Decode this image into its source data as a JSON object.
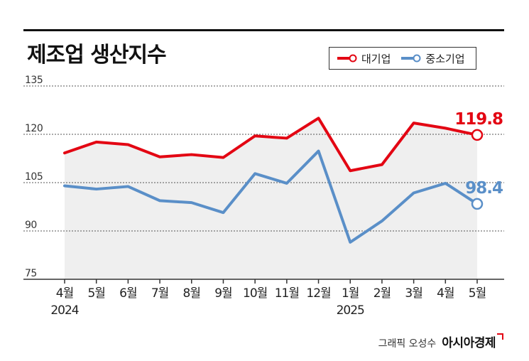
{
  "title": "제조업 생산지수",
  "credit": {
    "author": "그래픽 오성수",
    "brand": "아시아경제"
  },
  "colors": {
    "large": "#e30613",
    "small": "#5a8fc8",
    "area": "#efefef",
    "axis": "#333333"
  },
  "chart_data": {
    "type": "line",
    "title": "제조업 생산지수",
    "xlabel": "",
    "ylabel": "",
    "ylim": [
      75,
      135
    ],
    "yticks": [
      75,
      90,
      105,
      120,
      135
    ],
    "grid": true,
    "legend_position": "top-right",
    "x_ticks": [
      "4월",
      "5월",
      "6월",
      "7월",
      "8월",
      "9월",
      "10월",
      "11월",
      "12월",
      "1월",
      "2월",
      "3월",
      "4월",
      "5월"
    ],
    "year_labels": [
      {
        "at": "4월",
        "text": "2024"
      },
      {
        "at": "1월",
        "text": "2025"
      }
    ],
    "series": [
      {
        "name": "대기업",
        "values": [
          114.2,
          117.6,
          116.8,
          113.0,
          113.7,
          112.8,
          119.5,
          118.8,
          125.0,
          108.7,
          110.6,
          123.5,
          121.9,
          119.8
        ],
        "end_label": "119.8"
      },
      {
        "name": "중소기업",
        "values": [
          104.0,
          103.0,
          103.8,
          99.4,
          98.8,
          95.7,
          107.8,
          104.8,
          114.8,
          86.5,
          93.1,
          101.8,
          104.8,
          98.4
        ],
        "end_label": "98.4"
      }
    ]
  }
}
